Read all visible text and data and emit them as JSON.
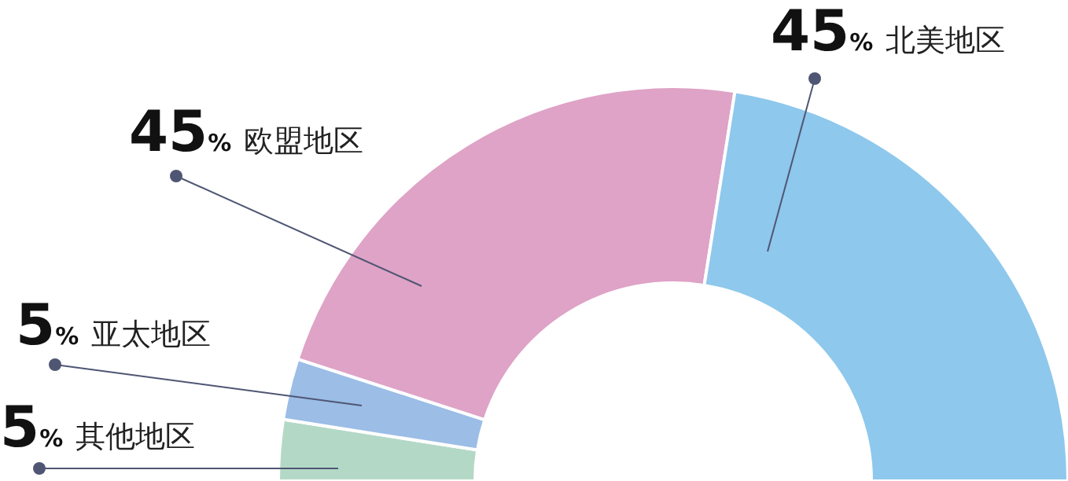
{
  "chart_data": {
    "type": "donut",
    "categories": [
      "其他地区",
      "亚太地区",
      "欧盟地区",
      "北美地区"
    ],
    "values": [
      5,
      5,
      45,
      45
    ],
    "colors": [
      "#b3d9c6",
      "#9bbde6",
      "#dea3c6",
      "#8ec8ec"
    ],
    "value_labels": [
      "5%",
      "5%",
      "45%",
      "45%"
    ]
  }
}
